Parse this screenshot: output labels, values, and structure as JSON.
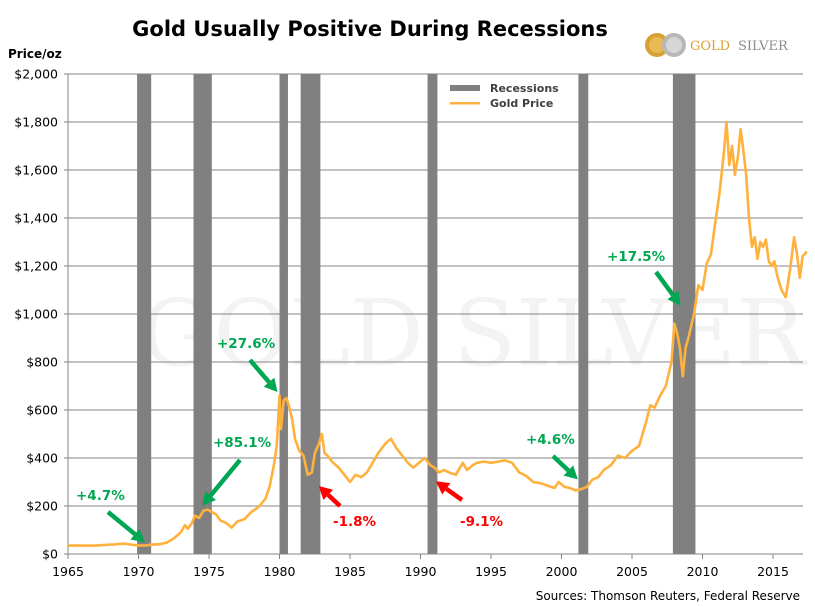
{
  "chart_data": {
    "type": "line",
    "title": "Gold Usually Positive During Recessions",
    "ylabel": "Price/oz",
    "xlabel": "",
    "xlim": [
      1965,
      2017.5
    ],
    "ylim": [
      0,
      2000
    ],
    "grid": true,
    "x_ticks": [
      1965,
      1970,
      1975,
      1980,
      1985,
      1990,
      1995,
      2000,
      2005,
      2010,
      2015
    ],
    "x_tick_labels": [
      "1965",
      "1970",
      "1975",
      "1980",
      "1985",
      "1990",
      "1995",
      "2000",
      "2005",
      "2010",
      "2015"
    ],
    "y_ticks": [
      0,
      200,
      400,
      600,
      800,
      1000,
      1200,
      1400,
      1600,
      1800,
      2000
    ],
    "y_tick_labels": [
      "$0",
      "$200",
      "$400",
      "$600",
      "$800",
      "$1,000",
      "$1,200",
      "$1,400",
      "$1,600",
      "$1,800",
      "$2,000"
    ],
    "legend": {
      "placement": "top-center",
      "entries": [
        {
          "name": "Recessions",
          "color": "#808080",
          "kind": "bar"
        },
        {
          "name": "Gold Price",
          "color": "#ffb13d",
          "kind": "line"
        }
      ]
    },
    "recessions": [
      {
        "start": 1969.9,
        "end": 1970.9
      },
      {
        "start": 1973.9,
        "end": 1975.2
      },
      {
        "start": 1980.0,
        "end": 1980.6
      },
      {
        "start": 1981.5,
        "end": 1982.9
      },
      {
        "start": 1990.5,
        "end": 1991.2
      },
      {
        "start": 2001.2,
        "end": 2001.9
      },
      {
        "start": 2007.9,
        "end": 2009.5
      }
    ],
    "series": [
      {
        "name": "Gold Price",
        "color": "#ffb13d",
        "x": [
          1965.0,
          1966.0,
          1967.0,
          1968.0,
          1968.3,
          1968.6,
          1969.0,
          1969.3,
          1969.6,
          1970.0,
          1970.5,
          1971.0,
          1971.5,
          1972.0,
          1972.5,
          1973.0,
          1973.3,
          1973.5,
          1973.8,
          1974.0,
          1974.3,
          1974.6,
          1974.9,
          1975.2,
          1975.5,
          1975.8,
          1976.2,
          1976.6,
          1977.0,
          1977.5,
          1978.0,
          1978.5,
          1979.0,
          1979.3,
          1979.6,
          1979.8,
          1980.0,
          1980.1,
          1980.3,
          1980.5,
          1980.7,
          1980.9,
          1981.1,
          1981.4,
          1981.7,
          1982.0,
          1982.3,
          1982.5,
          1982.8,
          1983.0,
          1983.2,
          1983.4,
          1983.8,
          1984.2,
          1984.6,
          1985.0,
          1985.4,
          1985.8,
          1986.2,
          1986.6,
          1987.0,
          1987.5,
          1987.9,
          1988.3,
          1988.7,
          1989.1,
          1989.5,
          1989.9,
          1990.3,
          1990.7,
          1991.0,
          1991.3,
          1991.7,
          1992.0,
          1992.5,
          1993.0,
          1993.3,
          1993.7,
          1994.0,
          1994.5,
          1995.0,
          1995.5,
          1996.0,
          1996.5,
          1997.0,
          1997.5,
          1998.0,
          1998.5,
          1999.0,
          1999.5,
          1999.8,
          2000.2,
          2000.6,
          2001.0,
          2001.4,
          2001.8,
          2002.2,
          2002.6,
          2003.0,
          2003.5,
          2004.0,
          2004.5,
          2005.0,
          2005.5,
          2006.0,
          2006.3,
          2006.6,
          2007.0,
          2007.4,
          2007.8,
          2008.0,
          2008.2,
          2008.4,
          2008.6,
          2008.8,
          2009.0,
          2009.2,
          2009.4,
          2009.7,
          2010.0,
          2010.3,
          2010.6,
          2010.9,
          2011.2,
          2011.5,
          2011.7,
          2011.9,
          2012.1,
          2012.3,
          2012.5,
          2012.7,
          2012.9,
          2013.1,
          2013.3,
          2013.5,
          2013.7,
          2013.9,
          2014.1,
          2014.3,
          2014.5,
          2014.7,
          2014.9,
          2015.1,
          2015.3,
          2015.6,
          2015.9,
          2016.2,
          2016.5,
          2016.7,
          2016.9,
          2017.1,
          2017.4
        ],
        "values": [
          35,
          35,
          35,
          39,
          40,
          42,
          43,
          41,
          38,
          35,
          36,
          39,
          41,
          47,
          65,
          90,
          120,
          105,
          130,
          160,
          150,
          180,
          185,
          175,
          165,
          140,
          130,
          110,
          135,
          145,
          175,
          195,
          230,
          280,
          370,
          450,
          660,
          520,
          640,
          650,
          610,
          560,
          480,
          430,
          410,
          330,
          340,
          420,
          460,
          500,
          420,
          410,
          380,
          360,
          330,
          300,
          330,
          320,
          340,
          380,
          420,
          460,
          480,
          440,
          410,
          380,
          360,
          380,
          400,
          370,
          360,
          340,
          350,
          340,
          330,
          380,
          350,
          370,
          380,
          385,
          380,
          385,
          390,
          380,
          340,
          325,
          300,
          295,
          285,
          275,
          300,
          280,
          275,
          265,
          270,
          280,
          310,
          320,
          350,
          370,
          410,
          400,
          430,
          450,
          550,
          620,
          610,
          660,
          700,
          800,
          960,
          920,
          860,
          740,
          860,
          900,
          950,
          1000,
          1120,
          1100,
          1210,
          1250,
          1380,
          1500,
          1660,
          1800,
          1620,
          1700,
          1580,
          1650,
          1770,
          1680,
          1580,
          1400,
          1280,
          1320,
          1230,
          1300,
          1280,
          1310,
          1220,
          1200,
          1220,
          1160,
          1100,
          1070,
          1180,
          1320,
          1250,
          1150,
          1240,
          1260
        ]
      }
    ],
    "annotations": [
      {
        "text": "+4.7%",
        "sentiment": "positive",
        "year": 1970.6,
        "value": 40
      },
      {
        "text": "+85.1%",
        "sentiment": "positive",
        "year": 1974.6,
        "value": 185
      },
      {
        "text": "+27.6%",
        "sentiment": "positive",
        "year": 1980.0,
        "value": 650
      },
      {
        "text": "-1.8%",
        "sentiment": "negative",
        "year": 1982.5,
        "value": 300
      },
      {
        "text": "-9.1%",
        "sentiment": "negative",
        "year": 1990.8,
        "value": 320
      },
      {
        "text": "+4.6%",
        "sentiment": "positive",
        "year": 2001.3,
        "value": 290
      },
      {
        "text": "+17.5%",
        "sentiment": "positive",
        "year": 2008.6,
        "value": 1010
      }
    ],
    "colors": {
      "positive": "#00a651",
      "negative": "#ff0000",
      "recession": "#808080",
      "gold": "#ffb13d",
      "grid": "#868686"
    }
  },
  "logo": {
    "text_gold": "GOLD",
    "text_silver": "SILVER"
  },
  "watermark": "GOLD SILVER",
  "source": "Sources: Thomson Reuters, Federal Reserve"
}
